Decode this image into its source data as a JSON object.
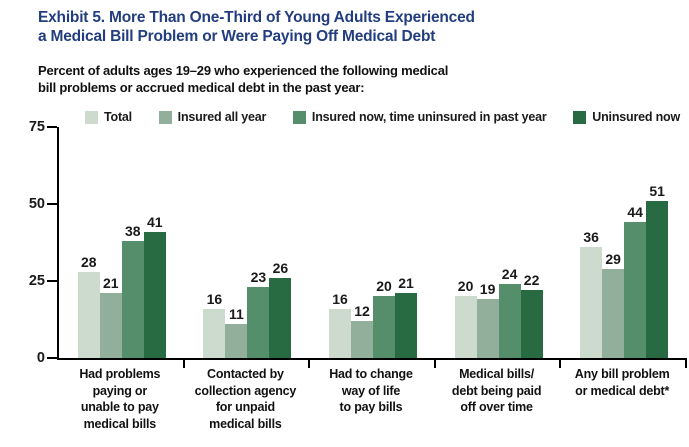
{
  "header": {
    "title": "Exhibit 5. More Than One-Third of Young Adults Experienced\na Medical Bill Problem or Were Paying Off Medical Debt",
    "title_color": "#233e7f",
    "subtitle": "Percent of adults ages 19–29 who experienced the following medical\nbill problems or accrued medical debt in the past year:"
  },
  "chart_data": {
    "type": "bar",
    "categories": [
      "Had problems\npaying or\nunable to pay\nmedical bills",
      "Contacted by\ncollection agency\nfor unpaid\nmedical bills",
      "Had to change\nway of life\nto pay bills",
      "Medical bills/\ndebt being paid\noff over time",
      "Any bill problem\nor medical debt*"
    ],
    "series": [
      {
        "name": "Total",
        "color": "#ccdbcd",
        "values": [
          28,
          16,
          16,
          20,
          36
        ]
      },
      {
        "name": "Insured all year",
        "color": "#92af9c",
        "values": [
          21,
          11,
          12,
          19,
          29
        ]
      },
      {
        "name": "Insured now, time uninsured in past year",
        "color": "#558e6b",
        "values": [
          38,
          23,
          20,
          24,
          44
        ]
      },
      {
        "name": "Uninsured now",
        "color": "#286a41",
        "values": [
          41,
          26,
          21,
          22,
          51
        ]
      }
    ],
    "ylim": [
      0,
      75
    ],
    "yticks": [
      0,
      25,
      50,
      75
    ],
    "grid": false,
    "legend_position": "top",
    "axis_color": "#000000",
    "value_labels": true
  }
}
